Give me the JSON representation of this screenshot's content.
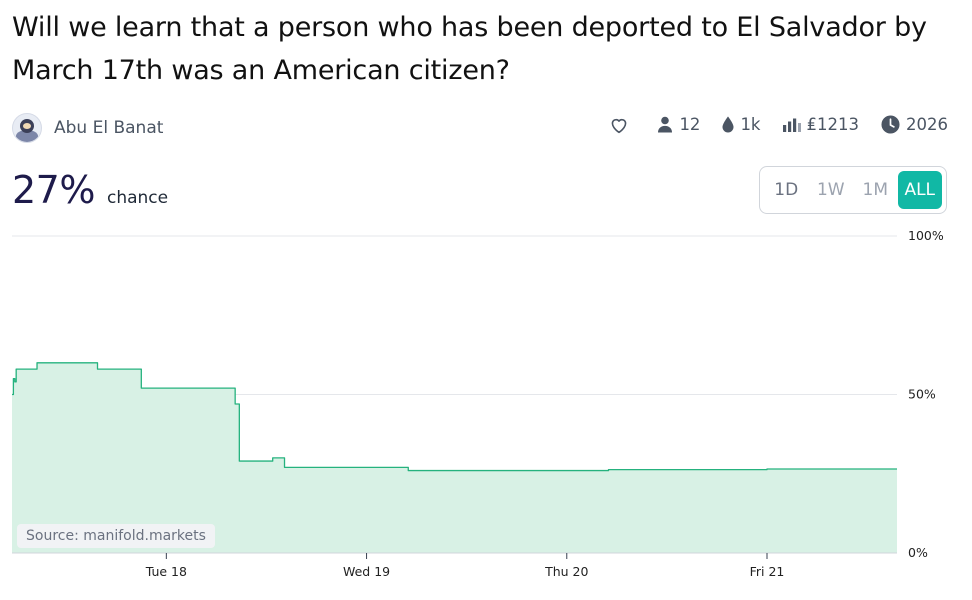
{
  "question": "Will we learn that a person who has been deported to El Salvador by March 17th was an American citizen?",
  "author": {
    "name": "Abu El Banat"
  },
  "stats": {
    "traders": "12",
    "volume": "1k",
    "liquidity": "₤1213",
    "close_year": "2026"
  },
  "probability": {
    "value": "27%",
    "label": "chance"
  },
  "range_buttons": [
    {
      "label": "1D",
      "active": false
    },
    {
      "label": "1W",
      "active": false
    },
    {
      "label": "1M",
      "active": false
    },
    {
      "label": "ALL",
      "active": true
    }
  ],
  "source_label": "Source: manifold.markets",
  "colors": {
    "accent": "#11b8a5",
    "line": "#25b27e",
    "fill": "#d8f1e5",
    "grid": "#e5e7eb"
  },
  "chart_data": {
    "type": "area",
    "step": true,
    "xlim": [
      "2025-03-17T05:30",
      "2025-03-21T15:35"
    ],
    "ylim": [
      0,
      100
    ],
    "ytick_labels": [
      "100%",
      "50%",
      "0%"
    ],
    "yticks": [
      100,
      50,
      0
    ],
    "xtick_labels": [
      "Tue 18",
      "Wed 19",
      "Thu 20",
      "Fri 21"
    ],
    "xticks": [
      "2025-03-18T00:00",
      "2025-03-19T00:00",
      "2025-03-20T00:00",
      "2025-03-21T00:00"
    ],
    "grid": true,
    "series": [
      {
        "points": [
          [
            "2025-03-17T05:30",
            50
          ],
          [
            "2025-03-17T05:40",
            55
          ],
          [
            "2025-03-17T05:50",
            54
          ],
          [
            "2025-03-17T06:00",
            58
          ],
          [
            "2025-03-17T08:30",
            60
          ],
          [
            "2025-03-17T15:45",
            58
          ],
          [
            "2025-03-17T21:00",
            52
          ],
          [
            "2025-03-18T08:15",
            47
          ],
          [
            "2025-03-18T08:45",
            29
          ],
          [
            "2025-03-18T12:45",
            30
          ],
          [
            "2025-03-18T14:10",
            27
          ],
          [
            "2025-03-19T05:00",
            26
          ],
          [
            "2025-03-20T05:00",
            26.3
          ],
          [
            "2025-03-21T00:00",
            26.5
          ],
          [
            "2025-03-21T15:35",
            26.5
          ]
        ]
      }
    ]
  }
}
